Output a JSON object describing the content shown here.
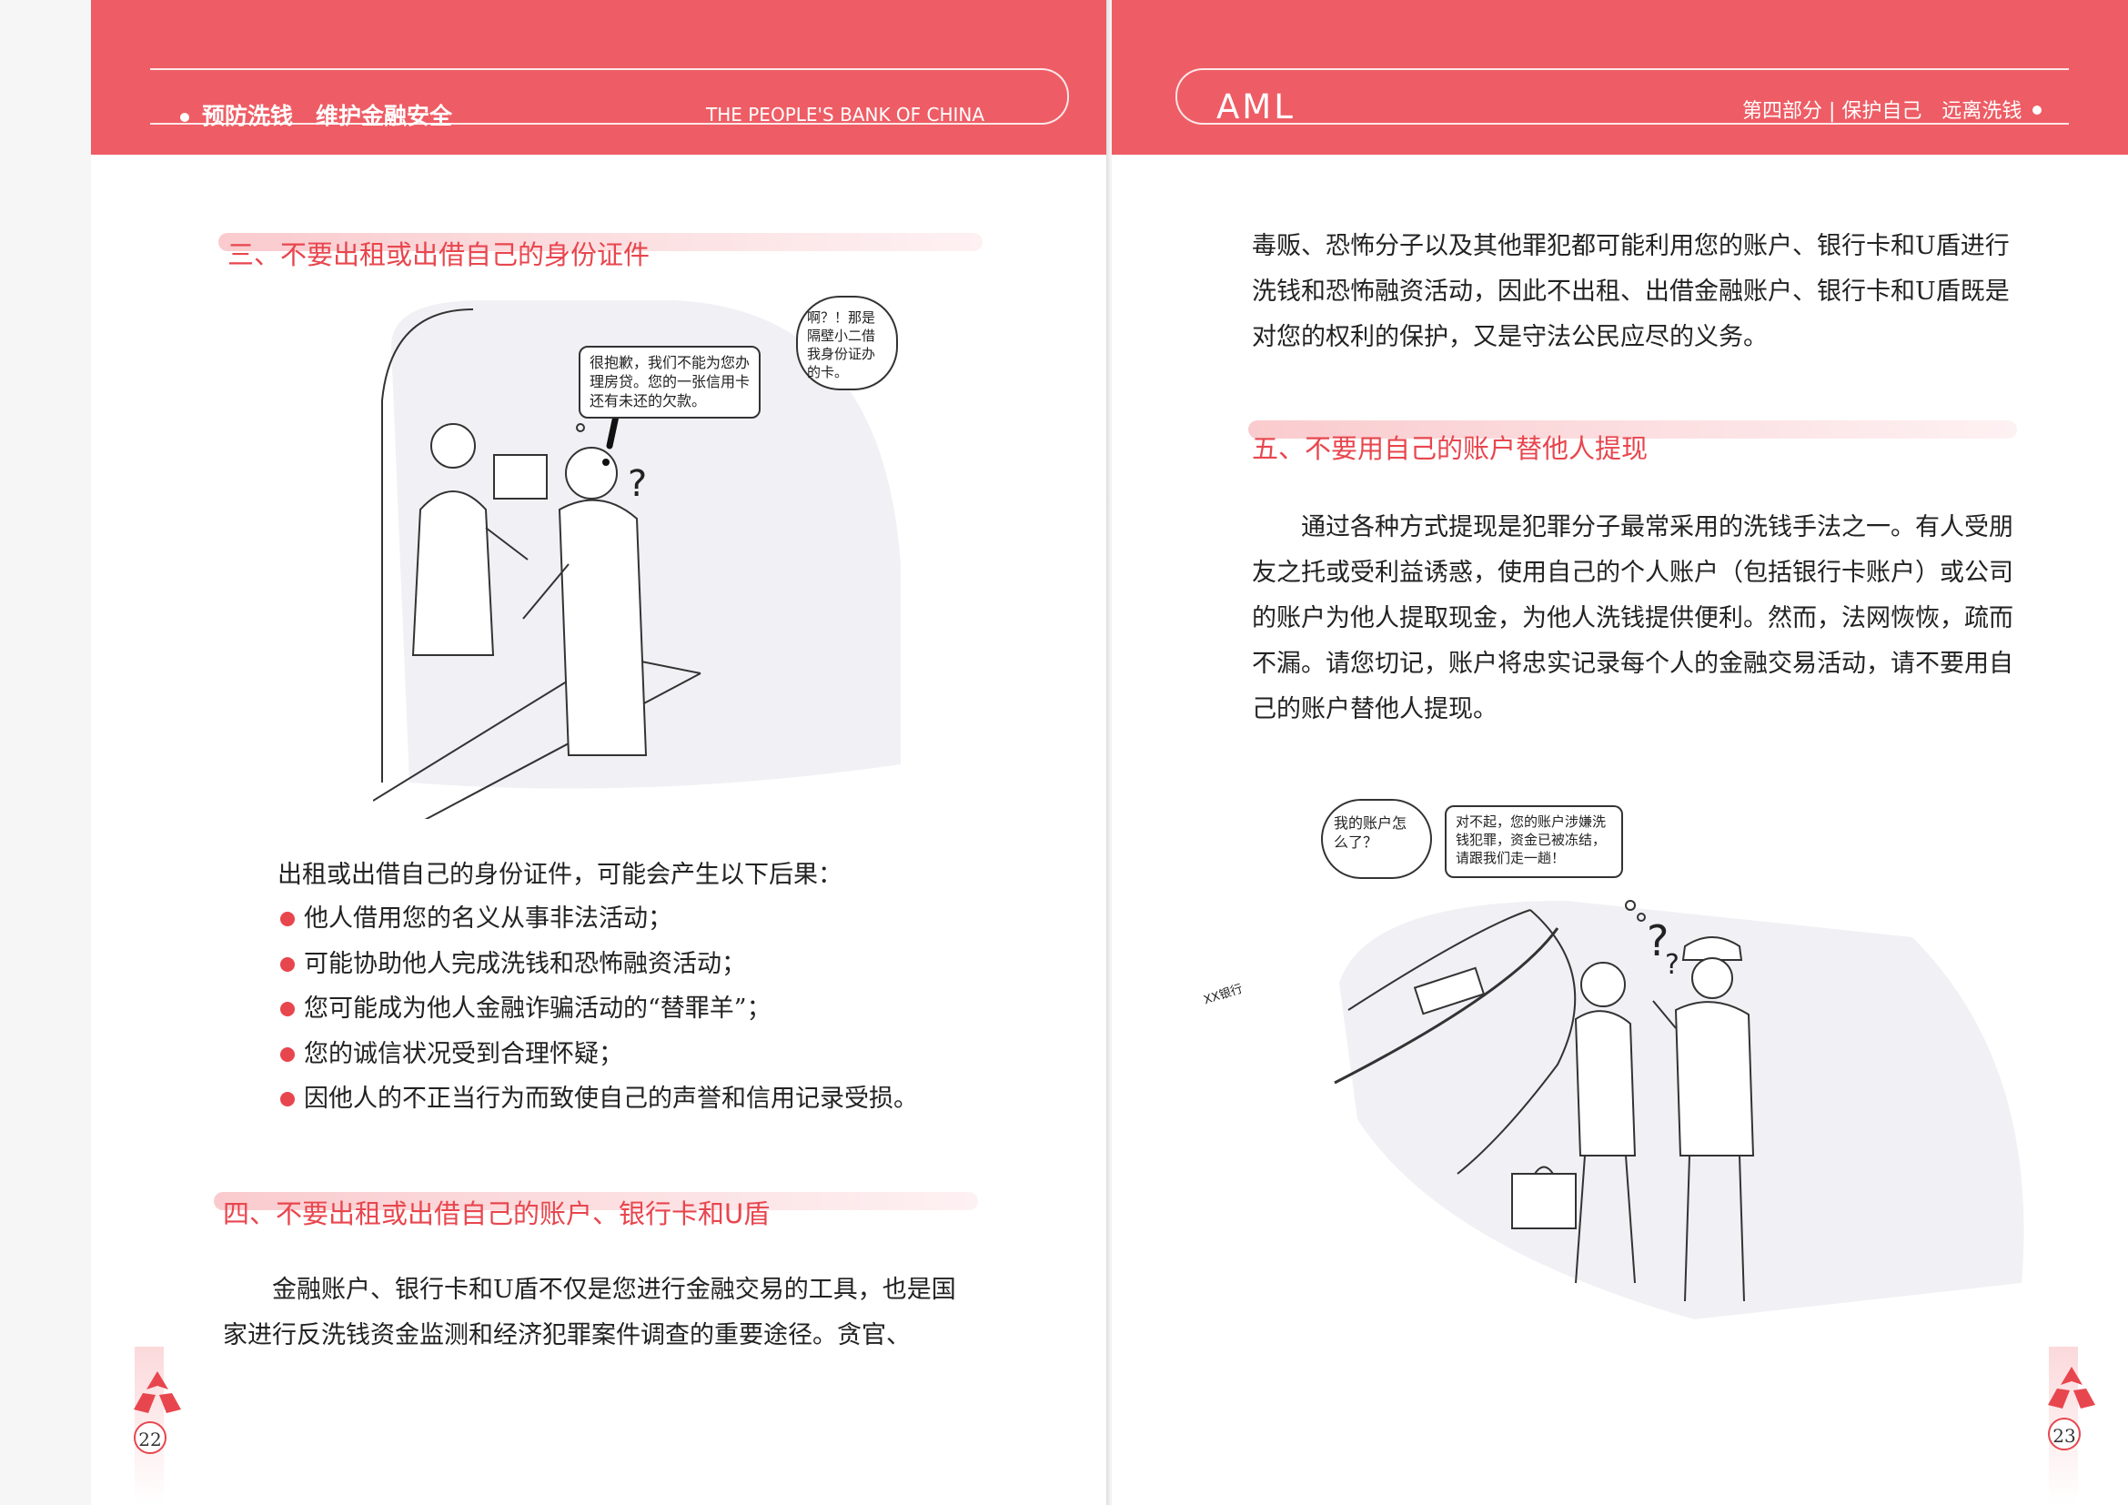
{
  "left": {
    "header": {
      "title": "预防洗钱　维护金融安全",
      "subtitle": "THE PEOPLE'S BANK OF CHINA"
    },
    "section3": {
      "heading": "三、不要出租或出借自己的身份证件",
      "illustration": {
        "clerk_bubble": "很抱歉，我们不能为您办理房贷。您的一张信用卡还有未还的欠款。",
        "customer_thought": "啊？！那是隔壁小二借我身份证办的卡。"
      },
      "intro": "出租或出借自己的身份证件，可能会产生以下后果：",
      "bullets": [
        "他人借用您的名义从事非法活动；",
        "可能协助他人完成洗钱和恐怖融资活动；",
        "您可能成为他人金融诈骗活动的“替罪羊”；",
        "您的诚信状况受到合理怀疑；",
        "因他人的不正当行为而致使自己的声誉和信用记录受损。"
      ]
    },
    "section4": {
      "heading": "四、不要出租或出借自己的账户、银行卡和U盾",
      "paragraph": "金融账户、银行卡和U盾不仅是您进行金融交易的工具，也是国家进行反洗钱资金监测和经济犯罪案件调查的重要途径。贪官、"
    },
    "page_number": "22"
  },
  "right": {
    "header": {
      "brand": "AML",
      "title": "第四部分 | 保护自己　远离洗钱"
    },
    "continued_paragraph": "毒贩、恐怖分子以及其他罪犯都可能利用您的账户、银行卡和U盾进行洗钱和恐怖融资活动，因此不出租、出借金融账户、银行卡和U盾既是对您的权利的保护，又是守法公民应尽的义务。",
    "section5": {
      "heading": "五、不要用自己的账户替他人提现",
      "paragraph": "通过各种方式提现是犯罪分子最常采用的洗钱手法之一。有人受朋友之托或受利益诱惑，使用自己的个人账户（包括银行卡账户）或公司的账户为他人提取现金，为他人洗钱提供便利。然而，法网恢恢，疏而不漏。请您切记，账户将忠实记录每个人的金融交易活动，请不要用自己的账户替他人提现。",
      "illustration": {
        "man_thought": "我的账户怎么了？",
        "officer_bubble": "对不起，您的账户涉嫌洗钱犯罪，资金已被冻结，请跟我们走一趟！",
        "sign_text": "XX银行"
      }
    },
    "page_number": "23"
  },
  "colors": {
    "header_red": "#ee5d65",
    "heading_red": "#e8464e",
    "text": "#222222"
  }
}
